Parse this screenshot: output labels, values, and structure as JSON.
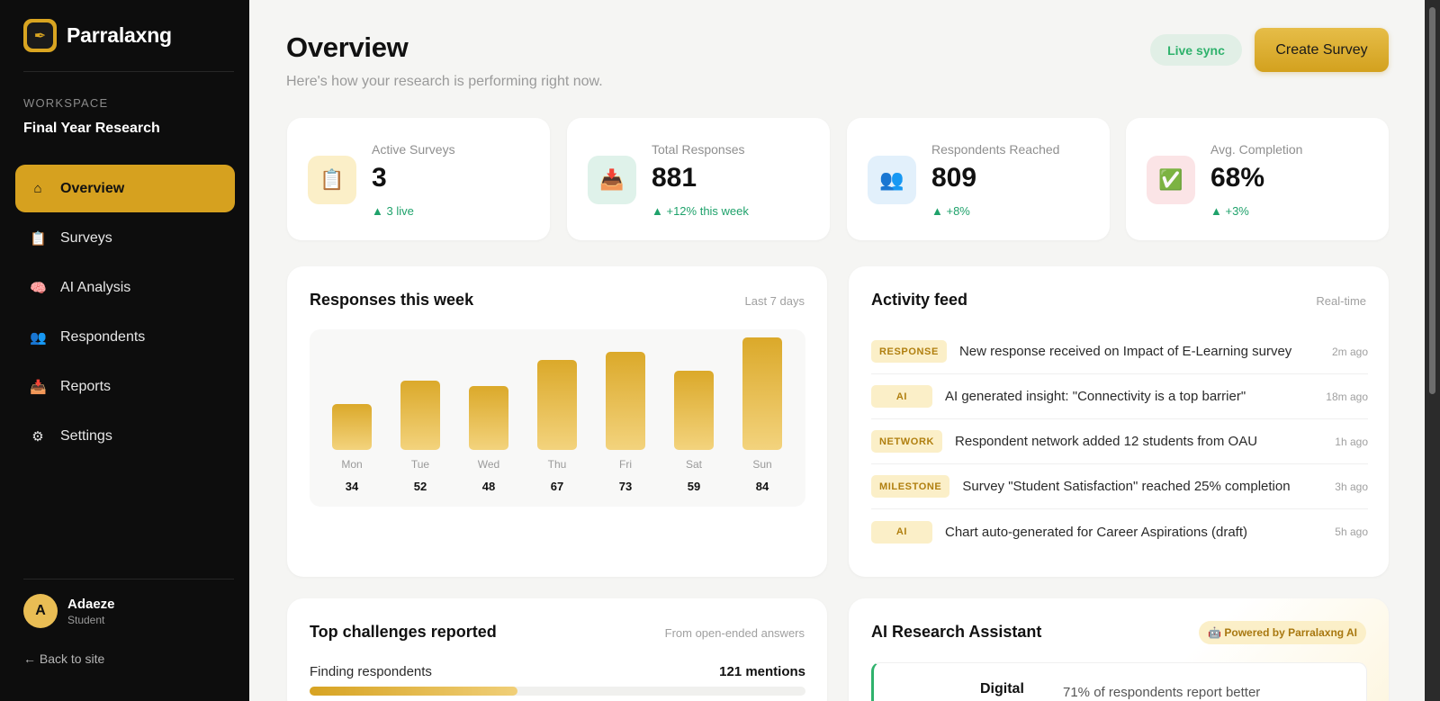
{
  "brand": {
    "name": "Parralaxng",
    "logo_icon": "feather-icon"
  },
  "workspace": {
    "label": "WORKSPACE",
    "name": "Final Year Research"
  },
  "nav": [
    {
      "label": "Overview",
      "icon": "⌂",
      "active": true
    },
    {
      "label": "Surveys",
      "icon": "📋"
    },
    {
      "label": "AI Analysis",
      "icon": "🧠"
    },
    {
      "label": "Respondents",
      "icon": "👥"
    },
    {
      "label": "Reports",
      "icon": "📥"
    },
    {
      "label": "Settings",
      "icon": "⚙"
    }
  ],
  "user": {
    "initial": "A",
    "name": "Adaeze",
    "role": "Student"
  },
  "back_link": "← Back to site",
  "header": {
    "title": "Overview",
    "subtitle": "Here's how your research is performing right now.",
    "live_sync": "Live sync",
    "create_button": "Create Survey"
  },
  "stats": [
    {
      "label": "Active Surveys",
      "value": "3",
      "delta": "▲ 3 live",
      "icon": "📋",
      "icon_bg": "#fbefc8"
    },
    {
      "label": "Total Responses",
      "value": "881",
      "delta": "▲ +12% this week",
      "icon": "📥",
      "icon_bg": "#dff2ea"
    },
    {
      "label": "Respondents Reached",
      "value": "809",
      "delta": "▲ +8%",
      "icon": "👥",
      "icon_bg": "#e2f0fb"
    },
    {
      "label": "Avg. Completion",
      "value": "68%",
      "delta": "▲ +3%",
      "icon": "✅",
      "icon_bg": "#fbe4e6"
    }
  ],
  "responses_panel": {
    "title": "Responses this week",
    "meta": "Last 7 days"
  },
  "chart_data": {
    "type": "bar",
    "categories": [
      "Mon",
      "Tue",
      "Wed",
      "Thu",
      "Fri",
      "Sat",
      "Sun"
    ],
    "values": [
      34,
      52,
      48,
      67,
      73,
      59,
      84
    ],
    "title": "Responses this week",
    "xlabel": "",
    "ylabel": "",
    "ylim": [
      0,
      84
    ],
    "grid": false,
    "bar_color": "#dba92a"
  },
  "activity": {
    "title": "Activity feed",
    "meta": "Real-time",
    "items": [
      {
        "tag": "RESPONSE",
        "text": "New response received on Impact of E-Learning survey",
        "time": "2m ago"
      },
      {
        "tag": "AI",
        "text": "AI generated insight: \"Connectivity is a top barrier\"",
        "time": "18m ago"
      },
      {
        "tag": "NETWORK",
        "text": "Respondent network added 12 students from OAU",
        "time": "1h ago"
      },
      {
        "tag": "MILESTONE",
        "text": "Survey \"Student Satisfaction\" reached 25% completion",
        "time": "3h ago"
      },
      {
        "tag": "AI",
        "text": "Chart auto-generated for Career Aspirations (draft)",
        "time": "5h ago"
      }
    ]
  },
  "challenges": {
    "title": "Top challenges reported",
    "meta": "From open-ended answers",
    "items": [
      {
        "name": "Finding respondents",
        "count": "121 mentions",
        "share": 0.42
      }
    ]
  },
  "assistant": {
    "title": "AI Research Assistant",
    "badge": "🤖 Powered by Parralaxng AI",
    "topic": "Digital",
    "insight": "71% of respondents report better"
  },
  "colors": {
    "accent": "#d6a11f",
    "positive": "#1fa26b",
    "sidebar_bg": "#0d0d0d",
    "page_bg": "#f5f5f3"
  }
}
